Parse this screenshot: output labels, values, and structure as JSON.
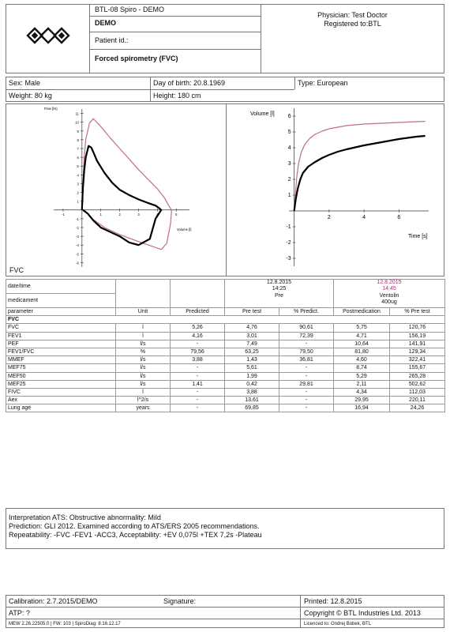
{
  "header": {
    "device": "BTL-08 Spiro - DEMO",
    "patient_name": "DEMO",
    "patient_id_label": "Patient id.:",
    "test_title": "Forced spirometry (FVC)",
    "physician": "Physician: Test Doctor",
    "registered": "Registered to:BTL"
  },
  "patient": {
    "sex": "Sex: Male",
    "dob": "Day of birth: 20.8.1969",
    "type": "Type: European",
    "weight": "Weight: 80 kg",
    "height": "Height: 180 cm"
  },
  "charts": {
    "fv_caption": "FVC",
    "flow_vol": {
      "ylabel": "Flow [l/s]",
      "xlabel": "Volume [l]",
      "y_ticks": [
        "11",
        "10",
        "9",
        "8",
        "7",
        "6",
        "5",
        "4",
        "3",
        "2",
        "1",
        "-1",
        "-2",
        "-3",
        "-4",
        "-5",
        "-6"
      ],
      "x_ticks": [
        "-1",
        "1",
        "2",
        "3",
        "4",
        "5"
      ]
    },
    "vol_time": {
      "ylabel": "Volume [l]",
      "xlabel": "Time [s]",
      "y_ticks": [
        "6",
        "5",
        "4",
        "3",
        "2",
        "1",
        "-1",
        "-2",
        "-3"
      ],
      "x_ticks": [
        "2",
        "4",
        "6"
      ]
    }
  },
  "chart_data": [
    {
      "type": "line",
      "xlabel": "Volume [l]",
      "ylabel": "Flow [l/s]",
      "xlim": [
        -1.5,
        5.7
      ],
      "ylim": [
        -6.5,
        11.5
      ],
      "series": [
        {
          "name": "Pre",
          "color": "#000000",
          "x": [
            0,
            0.05,
            0.12,
            0.2,
            0.35,
            0.5,
            0.8,
            1.2,
            1.6,
            2.0,
            2.5,
            3.0,
            3.5,
            3.9,
            4.1,
            4.2,
            3.9,
            3.6,
            3.0,
            2.5,
            2.0,
            1.5,
            1.0,
            0.6,
            0.3,
            0.05
          ],
          "y": [
            0,
            2.5,
            4.5,
            6.0,
            7.3,
            7.1,
            5.6,
            4.2,
            3.1,
            2.3,
            1.7,
            1.2,
            0.8,
            0.5,
            0.2,
            0,
            -1.0,
            -3.3,
            -4.0,
            -3.7,
            -3.0,
            -2.5,
            -2.0,
            -1.2,
            -0.4,
            0
          ]
        },
        {
          "name": "Post",
          "color": "#c06b96",
          "x": [
            0,
            0.05,
            0.12,
            0.2,
            0.4,
            0.6,
            1.0,
            1.5,
            2.0,
            2.5,
            3.0,
            3.5,
            4.0,
            4.4,
            4.6,
            4.75,
            4.7,
            4.5,
            4.2,
            3.8,
            3.0,
            2.0,
            1.2,
            0.6,
            0.3,
            0.1
          ],
          "y": [
            0,
            3.0,
            6.0,
            8.0,
            9.9,
            10.4,
            9.5,
            8.2,
            7.0,
            5.8,
            4.6,
            3.5,
            2.4,
            1.3,
            0.5,
            0,
            -1.5,
            -3.8,
            -4.5,
            -4.2,
            -3.6,
            -2.8,
            -2.0,
            -1.1,
            -0.4,
            0
          ]
        }
      ]
    },
    {
      "type": "line",
      "xlabel": "Time [s]",
      "ylabel": "Volume [l]",
      "xlim": [
        -0.3,
        7.7
      ],
      "ylim": [
        -3.5,
        6.5
      ],
      "series": [
        {
          "name": "Pre",
          "color": "#000000",
          "x": [
            0,
            0.1,
            0.2,
            0.35,
            0.5,
            0.8,
            1.2,
            1.6,
            2.0,
            2.5,
            3.0,
            4.0,
            5.0,
            6.0,
            7.0,
            7.5
          ],
          "y": [
            0,
            0.8,
            1.4,
            2.0,
            2.4,
            2.8,
            3.1,
            3.35,
            3.55,
            3.75,
            3.9,
            4.15,
            4.35,
            4.55,
            4.7,
            4.75
          ]
        },
        {
          "name": "Post",
          "color": "#c06b96",
          "x": [
            0,
            0.08,
            0.15,
            0.25,
            0.4,
            0.6,
            0.9,
            1.2,
            1.6,
            2.0,
            3.0,
            4.0,
            5.0,
            6.0,
            7.0,
            7.5
          ],
          "y": [
            0,
            1.2,
            2.2,
            3.0,
            3.7,
            4.2,
            4.6,
            4.85,
            5.05,
            5.2,
            5.4,
            5.5,
            5.55,
            5.6,
            5.65,
            5.67
          ]
        }
      ]
    }
  ],
  "results": {
    "date_label": "date/time",
    "medicament_label": "medicament",
    "pre_date": "12.8.2015",
    "pre_time": "14:25",
    "pre_label": "Pre",
    "post_date": "12.8.2015",
    "post_time": "14:45",
    "post_med": "Ventolin",
    "post_dose": "400ug",
    "headers": [
      "parameter",
      "Unit",
      "Predicted",
      "Pre test",
      "% Predict.",
      "Postmedication",
      "% Pre test"
    ],
    "section": "FVC",
    "rows": [
      [
        "FVC",
        "l",
        "5,26",
        "4,76",
        "90,61",
        "5,75",
        "120,76"
      ],
      [
        "FEV1",
        "l",
        "4,16",
        "3,01",
        "72,39",
        "4,71",
        "156,19"
      ],
      [
        "PEF",
        "l/s",
        "-",
        "7,49",
        "-",
        "10,64",
        "141,91"
      ],
      [
        "FEV1/FVC",
        "%",
        "79,56",
        "63,25",
        "79,50",
        "81,80",
        "129,34"
      ],
      [
        "MMEF",
        "l/s",
        "3,88",
        "1,43",
        "36,81",
        "4,60",
        "322,41"
      ],
      [
        "MEF75",
        "l/s",
        "-",
        "5,61",
        "-",
        "8,74",
        "155,67"
      ],
      [
        "MEF50",
        "l/s",
        "-",
        "1,99",
        "-",
        "5,29",
        "265,28"
      ],
      [
        "MEF25",
        "l/s",
        "1,41",
        "0,42",
        "29,81",
        "2,11",
        "502,62"
      ],
      [
        "FIVC",
        "l",
        "-",
        "3,88",
        "-",
        "4,34",
        "112,03"
      ],
      [
        "Aex",
        "l^2/s",
        "-",
        "13,61",
        "-",
        "29,95",
        "220,11"
      ],
      [
        "Lung age",
        "years",
        "-",
        "69,85",
        "-",
        "16,94",
        "24,26"
      ]
    ]
  },
  "interpretation": {
    "line1": "Interpretation ATS: Obstructive abnormality: Mild",
    "line2": "Prediction: GLI 2012. Examined according to ATS/ERS 2005 recommendations.",
    "line3": "Repeatability: -FVC -FEV1 -ACC3, Acceptability: +EV 0,075l +TEX 7,2s -Plateau"
  },
  "footer": {
    "calibration": "Calibration: 2.7.2015/DEMO",
    "signature": "Signature:",
    "printed": "Printed: 12.8.2015",
    "atp": "ATP: ?",
    "copyright": "Copyright © BTL Industries Ltd. 2013",
    "version": "MEW 2.26.22505.0 | FW: 103 | SpiroDiag: 8.16.12.17",
    "licence": "Licenced to: Ondrej Bobek, BTL"
  },
  "colors": {
    "post": "#c06b96",
    "pre": "#000000",
    "border": "#777777"
  }
}
